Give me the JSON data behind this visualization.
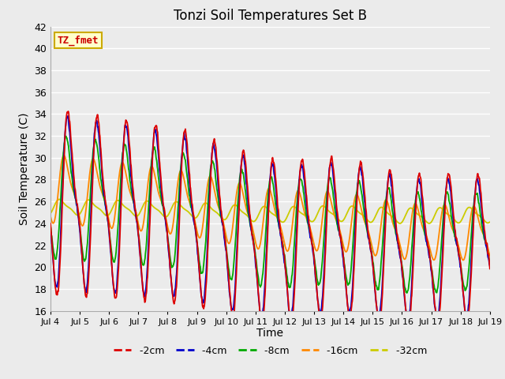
{
  "title": "Tonzi Soil Temperatures Set B",
  "xlabel": "Time",
  "ylabel": "Soil Temperature (C)",
  "ylim": [
    16,
    42
  ],
  "yticks": [
    16,
    18,
    20,
    22,
    24,
    26,
    28,
    30,
    32,
    34,
    36,
    38,
    40,
    42
  ],
  "plot_bg_color": "#ebebeb",
  "grid_color": "#ffffff",
  "label_box_text": "TZ_fmet",
  "label_box_facecolor": "#ffffcc",
  "label_box_edgecolor": "#ccaa00",
  "label_box_textcolor": "#cc0000",
  "series_colors": {
    "-2cm": "#dd0000",
    "-4cm": "#0000cc",
    "-8cm": "#00aa00",
    "-16cm": "#ff8800",
    "-32cm": "#cccc00"
  },
  "start_day": 4,
  "end_day": 19,
  "x_tick_labels": [
    "Jul 4",
    "Jul 5",
    "Jul 6",
    "Jul 7",
    "Jul 8",
    "Jul 9",
    "Jul 10",
    "Jul 11",
    "Jul 12",
    "Jul 13",
    "Jul 14",
    "Jul 15",
    "Jul 16",
    "Jul 17",
    "Jul 18",
    "Jul 19"
  ],
  "legend_entries": [
    "-2cm",
    "-4cm",
    "-8cm",
    "-16cm",
    "-32cm"
  ]
}
